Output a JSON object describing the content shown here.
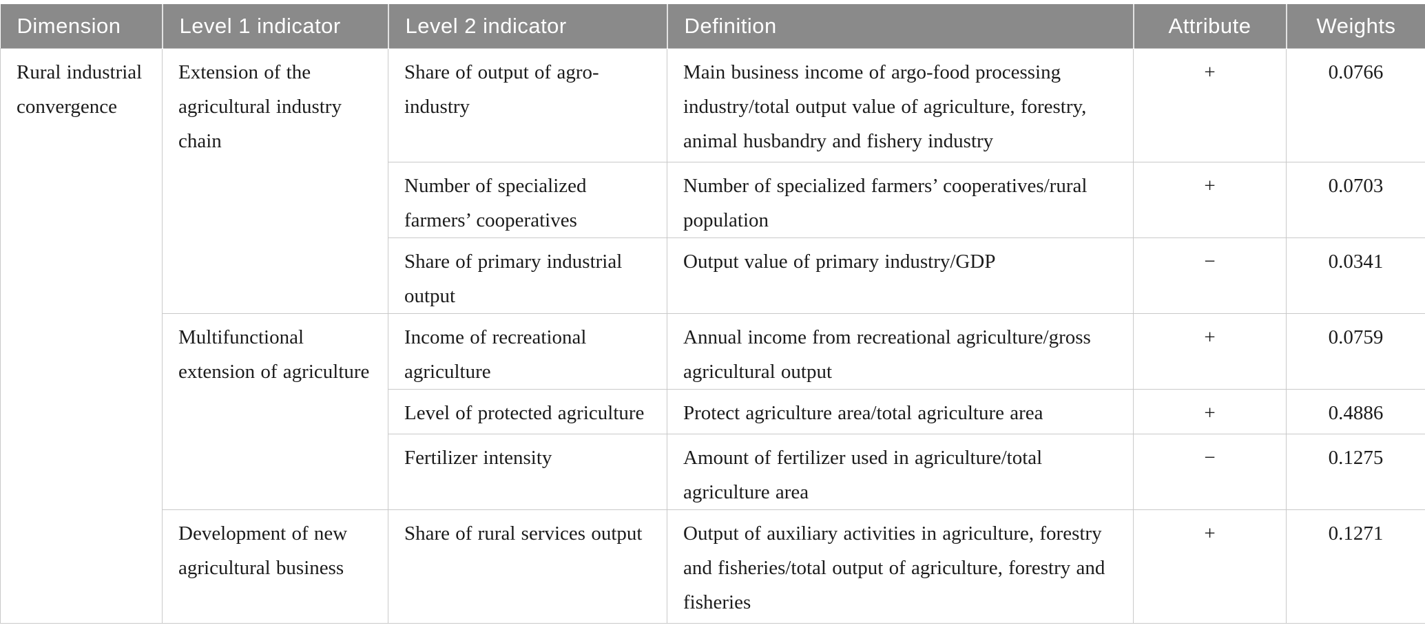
{
  "colors": {
    "header_bg": "#8a8a8a",
    "header_text": "#ffffff",
    "body_text": "#1b1b1b",
    "cell_border": "#c9c9c9"
  },
  "table": {
    "columns": {
      "dimension": "Dimension",
      "level1": "Level 1 indicator",
      "level2": "Level 2 indicator",
      "definition": "Definition",
      "attribute": "Attribute",
      "weights": "Weights"
    },
    "dimension": "Rural industrial convergence",
    "groups": [
      {
        "level1": "Extension of the agricultural industry chain",
        "rows": [
          {
            "level2": "Share of output of agro-industry",
            "definition": "Main business income of argo-food processing industry/total output value of agriculture, forestry, animal husbandry and fishery industry",
            "attribute": "+",
            "weight": "0.0766"
          },
          {
            "level2": "Number of specialized farmers’ cooperatives",
            "definition": "Number of specialized farmers’ cooperatives/rural population",
            "attribute": "+",
            "weight": "0.0703"
          },
          {
            "level2": "Share of primary industrial output",
            "definition": "Output value of primary industry/GDP",
            "attribute": "−",
            "weight": "0.0341"
          }
        ]
      },
      {
        "level1": "Multifunctional extension of agriculture",
        "rows": [
          {
            "level2": "Income of recreational agriculture",
            "definition": "Annual income from recreational agriculture/gross agricultural output",
            "attribute": "+",
            "weight": "0.0759"
          },
          {
            "level2": "Level of protected agriculture",
            "definition": "Protect agriculture area/total agriculture area",
            "attribute": "+",
            "weight": "0.4886"
          },
          {
            "level2": "Fertilizer intensity",
            "definition": "Amount of fertilizer used in agriculture/total agriculture area",
            "attribute": "−",
            "weight": "0.1275"
          }
        ]
      },
      {
        "level1": "Development of new agricultural business",
        "rows": [
          {
            "level2": "Share of rural services output",
            "definition": "Output of auxiliary activities in agriculture, forestry and fisheries/total output of agriculture, forestry and fisheries",
            "attribute": "+",
            "weight": "0.1271"
          }
        ]
      }
    ]
  }
}
